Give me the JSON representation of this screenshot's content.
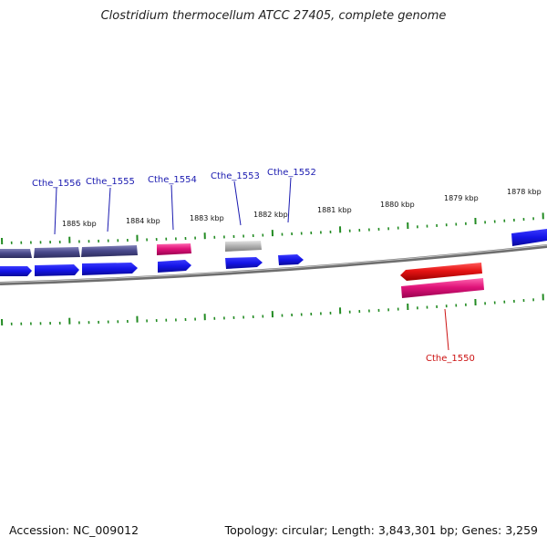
{
  "title": "Clostridium thermocellum ATCC 27405, complete genome",
  "accession": "Accession: NC_009012",
  "summary": "Topology: circular; Length: 3,843,301 bp; Genes: 3,259",
  "ticks": [
    {
      "label": "1885 kbp"
    },
    {
      "label": "1884 kbp"
    },
    {
      "label": "1883 kbp"
    },
    {
      "label": "1882 kbp"
    },
    {
      "label": "1881 kbp"
    },
    {
      "label": "1880 kbp"
    },
    {
      "label": "1879 kbp"
    },
    {
      "label": "1878 kbp"
    }
  ],
  "gene_labels": [
    {
      "name": "Cthe_1556",
      "color": "#1a1ab0"
    },
    {
      "name": "Cthe_1555",
      "color": "#1a1ab0"
    },
    {
      "name": "Cthe_1554",
      "color": "#1a1ab0"
    },
    {
      "name": "Cthe_1553",
      "color": "#1a1ab0"
    },
    {
      "name": "Cthe_1552",
      "color": "#1a1ab0"
    },
    {
      "name": "Cthe_1550",
      "color": "#cc1111"
    }
  ],
  "colors": {
    "backbone": "#8c8c8c",
    "tick": "#228b22",
    "cds": "#1414e6",
    "gene_slate": "#4a4a8c",
    "rna_pink": "#e0147a",
    "pseudo_grey": "#b4b4b4",
    "reverse_red": "#e61414"
  }
}
